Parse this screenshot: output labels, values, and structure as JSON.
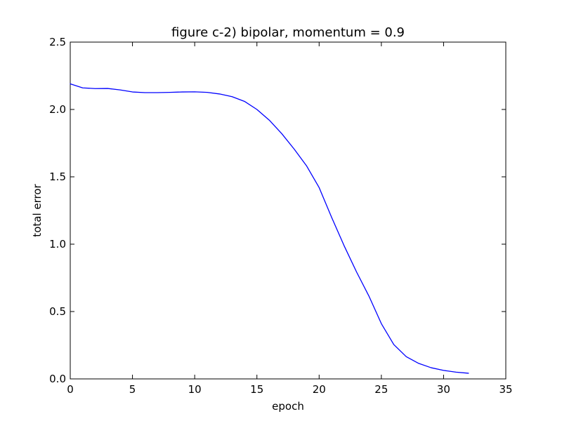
{
  "chart_data": {
    "type": "line",
    "title": "figure c-2) bipolar, momentum = 0.9",
    "xlabel": "epoch",
    "ylabel": "total error",
    "xlim": [
      0,
      35
    ],
    "ylim": [
      0.0,
      2.5
    ],
    "xticks": [
      "0",
      "5",
      "10",
      "15",
      "20",
      "25",
      "30",
      "35"
    ],
    "yticks": [
      "0.0",
      "0.5",
      "1.0",
      "1.5",
      "2.0",
      "2.5"
    ],
    "grid": false,
    "legend": "none",
    "series": [
      {
        "color": "#0000ff",
        "x": [
          0,
          1,
          2,
          3,
          4,
          5,
          6,
          7,
          8,
          9,
          10,
          11,
          12,
          13,
          14,
          15,
          16,
          17,
          18,
          19,
          20,
          21,
          22,
          23,
          24,
          25,
          26,
          27,
          28,
          29,
          30,
          31,
          32
        ],
        "y": [
          2.19,
          2.16,
          2.155,
          2.156,
          2.145,
          2.13,
          2.125,
          2.125,
          2.127,
          2.13,
          2.131,
          2.127,
          2.115,
          2.095,
          2.06,
          2.0,
          1.92,
          1.82,
          1.705,
          1.58,
          1.42,
          1.2,
          0.99,
          0.795,
          0.615,
          0.41,
          0.255,
          0.165,
          0.115,
          0.083,
          0.063,
          0.05,
          0.042
        ]
      }
    ]
  }
}
